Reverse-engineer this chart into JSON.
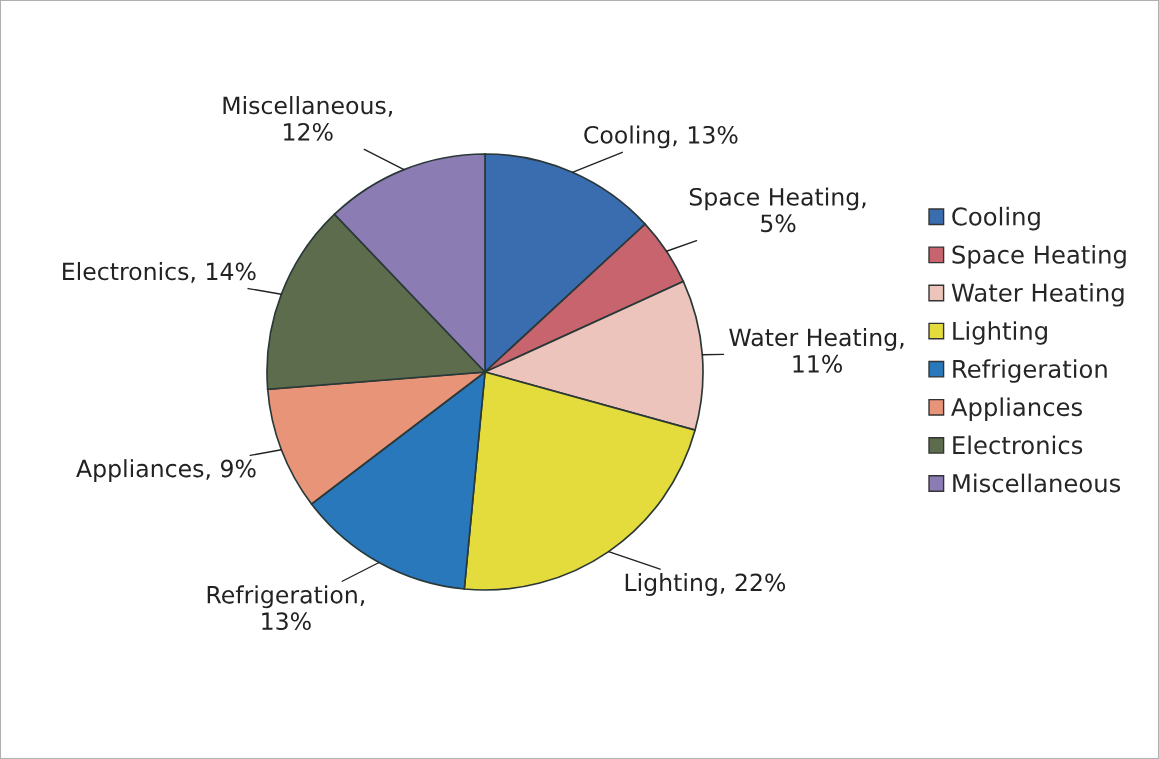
{
  "chart_data": {
    "type": "pie",
    "categories": [
      "Cooling",
      "Space Heating",
      "Water Heating",
      "Lighting",
      "Refrigeration",
      "Appliances",
      "Electronics",
      "Miscellaneous"
    ],
    "values": [
      13,
      5,
      11,
      22,
      13,
      9,
      14,
      12
    ],
    "colors": [
      "#3a6cb0",
      "#c8646e",
      "#ecc4bc",
      "#e4dc3c",
      "#2a78bc",
      "#e89478",
      "#5c6c4c",
      "#8c7cb4"
    ],
    "value_labels": [
      "Cooling, 13%",
      "Space Heating,\n5%",
      "Water Heating,\n11%",
      "Lighting, 22%",
      "Refrigeration,\n13%",
      "Appliances, 9%",
      "Electronics, 14%",
      "Miscellaneous,\n12%"
    ],
    "legend": "right"
  }
}
